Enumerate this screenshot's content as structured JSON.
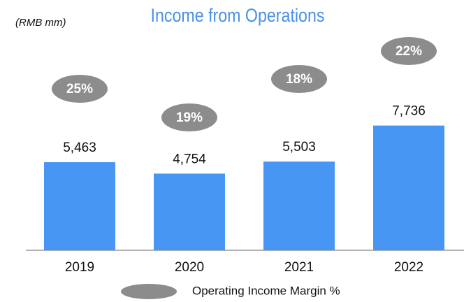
{
  "chart_data": {
    "type": "bar",
    "title": "Income from Operations",
    "subtitle": "(RMB mm)",
    "categories": [
      "2019",
      "2020",
      "2021",
      "2022"
    ],
    "values": [
      5463,
      4754,
      5503,
      7736
    ],
    "value_labels": [
      "5,463",
      "4,754",
      "5,503",
      "7,736"
    ],
    "color": "#4896f4",
    "margin": {
      "name": "Operating Income Margin %",
      "color": "#8c8c8c",
      "values": [
        25,
        19,
        18,
        22
      ],
      "value_labels": [
        "25%",
        "19%",
        "18%",
        "22%"
      ]
    }
  }
}
